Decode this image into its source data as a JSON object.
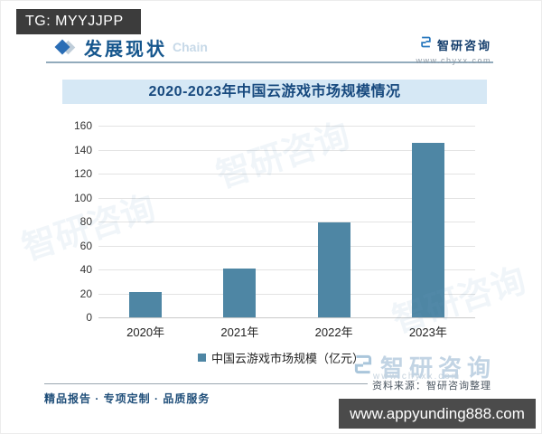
{
  "badge": {
    "text": "TG: MYYJJPP"
  },
  "header": {
    "title": "发展现状",
    "watermark": "Chain"
  },
  "brand": {
    "name": "智研咨询",
    "site": "www.chyxx.com"
  },
  "chart_data": {
    "type": "bar",
    "title": "2020-2023年中国云游戏市场规模情况",
    "categories": [
      "2020年",
      "2021年",
      "2022年",
      "2023年"
    ],
    "values": [
      21,
      41,
      79,
      146
    ],
    "legend": [
      "中国云游戏市场规模（亿元）"
    ],
    "xlabel": "",
    "ylabel": "",
    "ylim": [
      0,
      160
    ],
    "ytick_step": 20,
    "grid": true,
    "legend_position": "bottom",
    "bar_color": "#4e86a4"
  },
  "footer": {
    "tagline": "精品报告 · 专项定制 · 品质服务",
    "source": "资料来源：智研咨询整理",
    "watermark_brand": "智研咨询",
    "watermark_site": "www.chyxx.com",
    "bottom_bar": "www.appyunding888.com"
  },
  "colors": {
    "bar": "#4e86a4",
    "accent": "#2a6db5",
    "title_bg": "#d6e8f5",
    "title_text": "#17497e",
    "badge_bg": "#3c3c3c",
    "bottom_bar_bg": "#4b4b4b"
  }
}
